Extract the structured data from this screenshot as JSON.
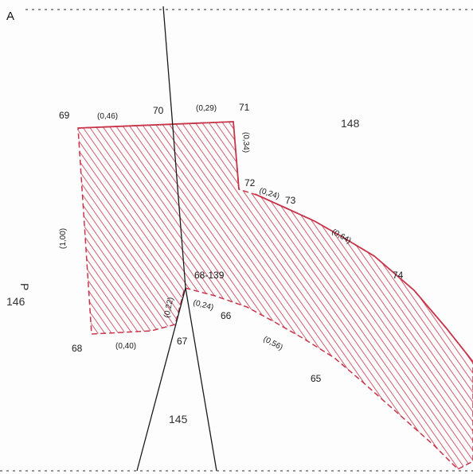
{
  "map": {
    "corner_label": "A",
    "parcels": {
      "p148": "148",
      "p145": "145",
      "p146": "146",
      "p146_marker": "P"
    },
    "points": {
      "p69": "69",
      "p70": "70",
      "p71": "71",
      "p72": "72",
      "p73": "73",
      "p74": "74",
      "p65": "65",
      "p66": "66",
      "p67": "67",
      "p68": "68",
      "p68_139": "68-139"
    },
    "distances": {
      "d69_70": "(0,46)",
      "d70_71": "(0,29)",
      "d71_72": "(0,34)",
      "d72_73": "(0,24)",
      "d73_74": "(0,64)",
      "d69_68": "(1,00)",
      "d68_67": "(0,40)",
      "d67_139": "(0,22)",
      "d139_66": "(0,24)",
      "d66_65": "(0,56)"
    },
    "colors": {
      "hatch": "#c8354a",
      "boundary": "#c8354a",
      "lines": "#1a1a1a",
      "dotted_border": "#555555"
    }
  }
}
